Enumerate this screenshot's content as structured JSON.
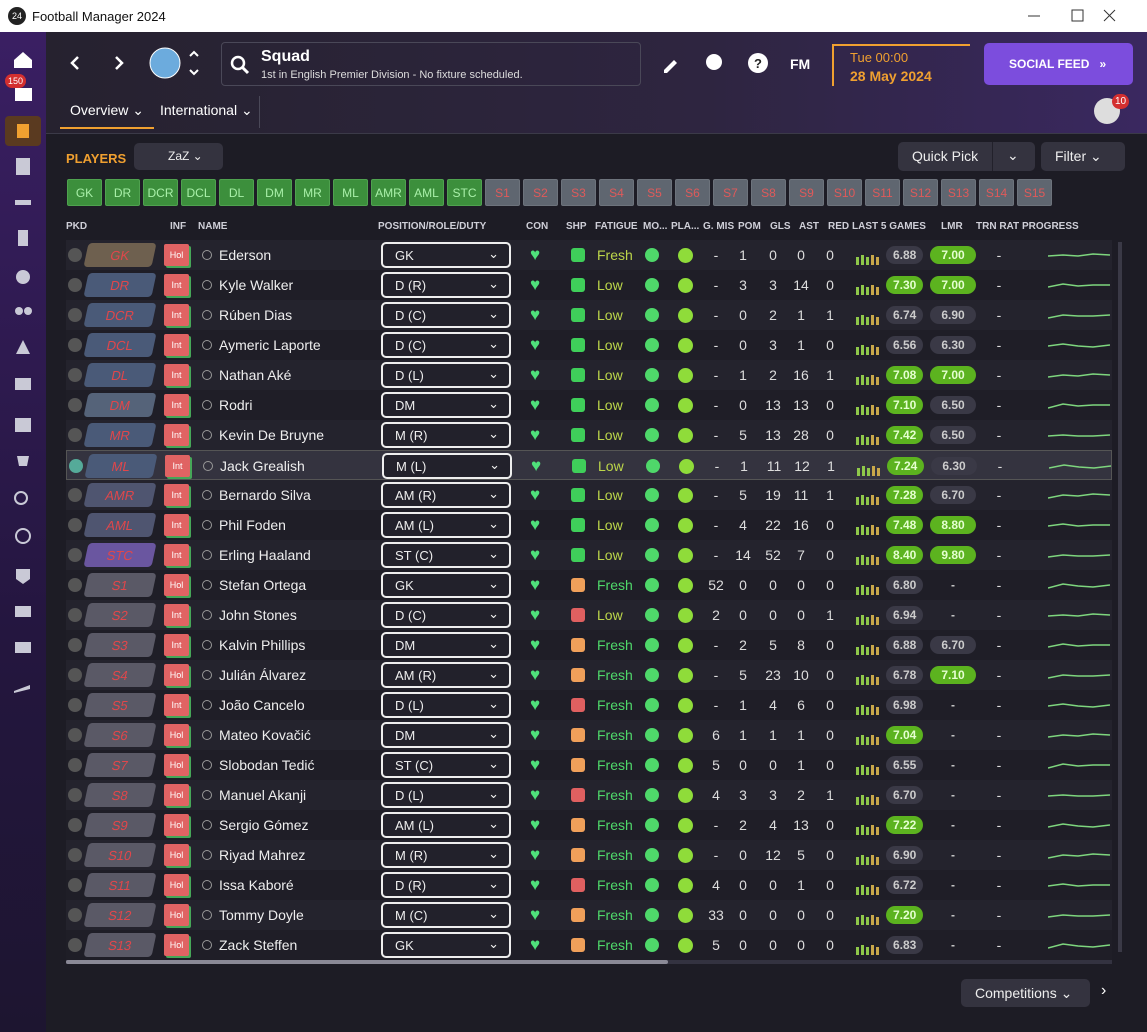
{
  "window_title": "Football Manager 2024",
  "sidebar": {
    "inbox_badge": "150"
  },
  "header": {
    "title": "Squad",
    "subtitle": "1st in English Premier Division - No fixture scheduled.",
    "time": "Tue 00:00",
    "date": "28 May 2024",
    "fm": "FM",
    "social": "SOCIAL FEED",
    "notifications": "10"
  },
  "tabs": [
    "Overview",
    "International"
  ],
  "players": {
    "heading": "PLAYERS",
    "view": "ZaZ",
    "quick_pick": "Quick Pick",
    "filter": "Filter"
  },
  "positions": [
    "GK",
    "DR",
    "DCR",
    "DCL",
    "DL",
    "DM",
    "MR",
    "ML",
    "AMR",
    "AML",
    "STC",
    "S1",
    "S2",
    "S3",
    "S4",
    "S5",
    "S6",
    "S7",
    "S8",
    "S9",
    "S10",
    "S11",
    "S12",
    "S13",
    "S14",
    "S15"
  ],
  "columns": [
    "PKD",
    "INF",
    "NAME",
    "POSITION/ROLE/DUTY",
    "CON",
    "SHP",
    "FATIGUE",
    "MO...",
    "PLA...",
    "G. MIS",
    "POM",
    "GLS",
    "AST",
    "RED",
    "LAST 5 GAMES",
    "LMR",
    "TRN RAT",
    "PROGRESS"
  ],
  "table": {
    "rows": [
      [
        "GK",
        "Hol",
        "Ederson",
        "GK",
        "Fresh",
        "-",
        "1",
        "0",
        "0",
        "0",
        "6.88",
        "7.00",
        "-"
      ],
      [
        "DR",
        "Int",
        "Kyle Walker",
        "D (R)",
        "Low",
        "-",
        "3",
        "3",
        "14",
        "0",
        "7.30",
        "7.00",
        "-"
      ],
      [
        "DCR",
        "Int",
        "Rúben Dias",
        "D (C)",
        "Low",
        "-",
        "0",
        "2",
        "1",
        "1",
        "6.74",
        "6.90",
        "-"
      ],
      [
        "DCL",
        "Int",
        "Aymeric Laporte",
        "D (C)",
        "Low",
        "-",
        "0",
        "3",
        "1",
        "0",
        "6.56",
        "6.30",
        "-"
      ],
      [
        "DL",
        "Int",
        "Nathan Aké",
        "D (L)",
        "Low",
        "-",
        "1",
        "2",
        "16",
        "1",
        "7.08",
        "7.00",
        "-"
      ],
      [
        "DM",
        "Int",
        "Rodri",
        "DM",
        "Low",
        "-",
        "0",
        "13",
        "13",
        "0",
        "7.10",
        "6.50",
        "-"
      ],
      [
        "MR",
        "Int",
        "Kevin De Bruyne",
        "M (R)",
        "Low",
        "-",
        "5",
        "13",
        "28",
        "0",
        "7.42",
        "6.50",
        "-"
      ],
      [
        "ML",
        "Int",
        "Jack Grealish",
        "M (L)",
        "Low",
        "-",
        "1",
        "11",
        "12",
        "1",
        "7.24",
        "6.30",
        "-"
      ],
      [
        "AMR",
        "Int",
        "Bernardo Silva",
        "AM (R)",
        "Low",
        "-",
        "5",
        "19",
        "11",
        "1",
        "7.28",
        "6.70",
        "-"
      ],
      [
        "AML",
        "Int",
        "Phil Foden",
        "AM (L)",
        "Low",
        "-",
        "4",
        "22",
        "16",
        "0",
        "7.48",
        "8.80",
        "-"
      ],
      [
        "STC",
        "Int",
        "Erling Haaland",
        "ST (C)",
        "Low",
        "-",
        "14",
        "52",
        "7",
        "0",
        "8.40",
        "9.80",
        "-"
      ],
      [
        "S1",
        "Hol",
        "Stefan Ortega",
        "GK",
        "Fresh",
        "52",
        "0",
        "0",
        "0",
        "0",
        "6.80",
        "-",
        "-"
      ],
      [
        "S2",
        "Int",
        "John Stones",
        "D (C)",
        "Low",
        "2",
        "0",
        "0",
        "0",
        "1",
        "6.94",
        "-",
        "-"
      ],
      [
        "S3",
        "Int",
        "Kalvin Phillips",
        "DM",
        "Fresh",
        "-",
        "2",
        "5",
        "8",
        "0",
        "6.88",
        "6.70",
        "-"
      ],
      [
        "S4",
        "Hol",
        "Julián Álvarez",
        "AM (R)",
        "Fresh",
        "-",
        "5",
        "23",
        "10",
        "0",
        "6.78",
        "7.10",
        "-"
      ],
      [
        "S5",
        "Int",
        "João Cancelo",
        "D (L)",
        "Fresh",
        "-",
        "1",
        "4",
        "6",
        "0",
        "6.98",
        "-",
        "-"
      ],
      [
        "S6",
        "Hol",
        "Mateo Kovačić",
        "DM",
        "Fresh",
        "6",
        "1",
        "1",
        "1",
        "0",
        "7.04",
        "-",
        "-"
      ],
      [
        "S7",
        "Hol",
        "Slobodan Tedić",
        "ST (C)",
        "Fresh",
        "5",
        "0",
        "0",
        "1",
        "0",
        "6.55",
        "-",
        "-"
      ],
      [
        "S8",
        "Hol",
        "Manuel Akanji",
        "D (L)",
        "Fresh",
        "4",
        "3",
        "3",
        "2",
        "1",
        "6.70",
        "-",
        "-"
      ],
      [
        "S9",
        "Hol",
        "Sergio Gómez",
        "AM (L)",
        "Fresh",
        "-",
        "2",
        "4",
        "13",
        "0",
        "7.22",
        "-",
        "-"
      ],
      [
        "S10",
        "Hol",
        "Riyad Mahrez",
        "M (R)",
        "Fresh",
        "-",
        "0",
        "12",
        "5",
        "0",
        "6.90",
        "-",
        "-"
      ],
      [
        "S11",
        "Hol",
        "Issa Kaboré",
        "D (R)",
        "Fresh",
        "4",
        "0",
        "0",
        "1",
        "0",
        "6.72",
        "-",
        "-"
      ],
      [
        "S12",
        "Hol",
        "Tommy Doyle",
        "M (C)",
        "Fresh",
        "33",
        "0",
        "0",
        "0",
        "0",
        "7.20",
        "-",
        "-"
      ],
      [
        "S13",
        "Hol",
        "Zack Steffen",
        "GK",
        "Fresh",
        "5",
        "0",
        "0",
        "0",
        "0",
        "6.83",
        "-",
        "-"
      ]
    ]
  },
  "footer": {
    "competitions": "Competitions"
  }
}
